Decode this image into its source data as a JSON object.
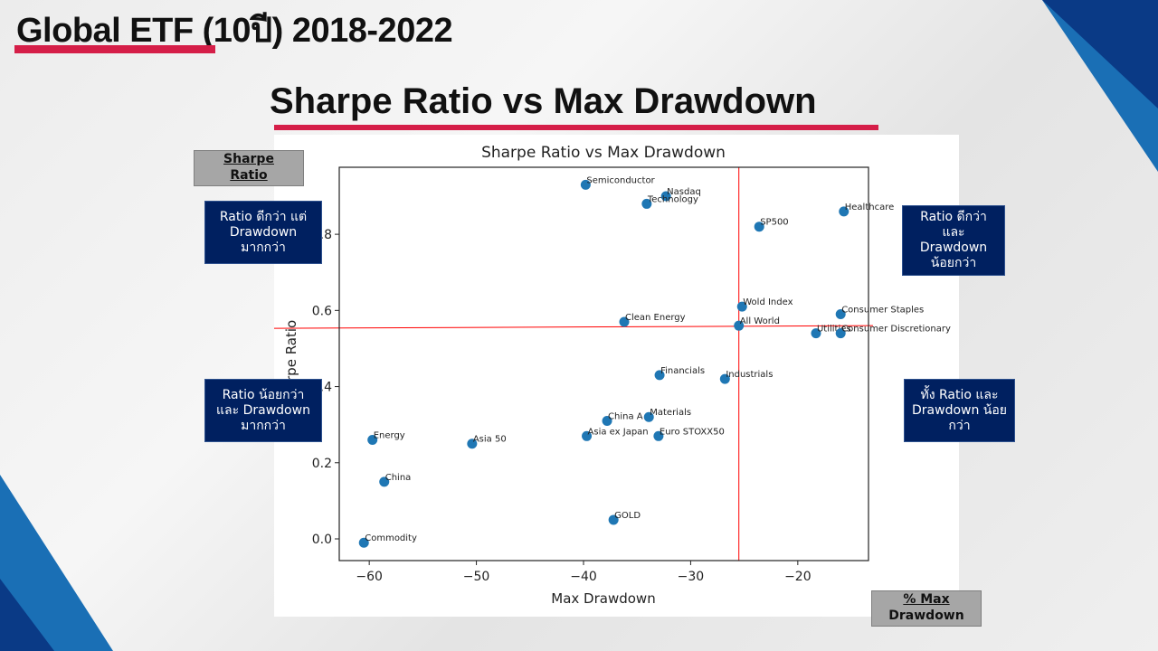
{
  "slide": {
    "title": "Global ETF (10ปี) 2018-2022",
    "subtitle": "Sharpe Ratio vs Max Drawdown",
    "y_axis_tag": {
      "line1": "Sharpe",
      "line2": "Ratio"
    },
    "x_axis_tag": {
      "line1": "% Max",
      "line2": "Drawdown"
    },
    "quadrants": {
      "top_left": "Ratio ดีกว่า แต่ Drawdown มากกว่า",
      "top_right": "Ratio ดีกว่า และ Drawdown น้อยกว่า",
      "bottom_left": "Ratio น้อยกว่า และ Drawdown มากกว่า",
      "bottom_right": "ทั้ง Ratio และ Drawdown น้อยกว่า"
    },
    "colors": {
      "accent": "#d51e48",
      "navy": "#002060",
      "point": "#1f77b4",
      "refline": "#ff0000"
    }
  },
  "chart_data": {
    "type": "scatter",
    "title": "Sharpe Ratio vs Max Drawdown",
    "xlabel": "Max Drawdown",
    "ylabel": "Sharpe Ratio",
    "xlim": [
      -62.8,
      -13.4
    ],
    "ylim": [
      -0.057,
      0.976
    ],
    "xticks": [
      -60,
      -50,
      -40,
      -30,
      -20
    ],
    "xtick_labels": [
      "−60",
      "−50",
      "−40",
      "−30",
      "−20"
    ],
    "yticks": [
      0.0,
      0.2,
      0.4,
      0.6,
      0.8
    ],
    "ytick_labels": [
      "0.0",
      "0.2",
      "0.4",
      "0.6",
      "0.8"
    ],
    "grid": false,
    "reference_lines": {
      "vertical_x": -25.5,
      "horizontal_y": [
        0.553,
        0.56
      ]
    },
    "points": [
      {
        "label": "Semiconductor",
        "x": -39.8,
        "y": 0.93
      },
      {
        "label": "Nasdaq",
        "x": -32.3,
        "y": 0.9
      },
      {
        "label": "Technology",
        "x": -34.1,
        "y": 0.88
      },
      {
        "label": "SP500",
        "x": -23.6,
        "y": 0.82
      },
      {
        "label": "Healthcare",
        "x": -15.7,
        "y": 0.86
      },
      {
        "label": "Wold Index",
        "x": -25.2,
        "y": 0.61
      },
      {
        "label": "Consumer Staples",
        "x": -16.0,
        "y": 0.59
      },
      {
        "label": "Clean Energy",
        "x": -36.2,
        "y": 0.57
      },
      {
        "label": "All World",
        "x": -25.5,
        "y": 0.56
      },
      {
        "label": "Utilities",
        "x": -18.3,
        "y": 0.54
      },
      {
        "label": "Consumer Discretionary",
        "x": -16.0,
        "y": 0.54
      },
      {
        "label": "Financials",
        "x": -32.9,
        "y": 0.43
      },
      {
        "label": "Industrials",
        "x": -26.8,
        "y": 0.42
      },
      {
        "label": "Materials",
        "x": -33.9,
        "y": 0.32
      },
      {
        "label": "China A",
        "x": -37.8,
        "y": 0.31
      },
      {
        "label": "Asia ex Japan",
        "x": -39.7,
        "y": 0.27
      },
      {
        "label": "Euro STOXX50",
        "x": -33.0,
        "y": 0.27
      },
      {
        "label": "Energy",
        "x": -59.7,
        "y": 0.26
      },
      {
        "label": "Asia 50",
        "x": -50.4,
        "y": 0.25
      },
      {
        "label": "China",
        "x": -58.6,
        "y": 0.15
      },
      {
        "label": "GOLD",
        "x": -37.2,
        "y": 0.05
      },
      {
        "label": "Commodity",
        "x": -60.5,
        "y": -0.01
      }
    ]
  }
}
